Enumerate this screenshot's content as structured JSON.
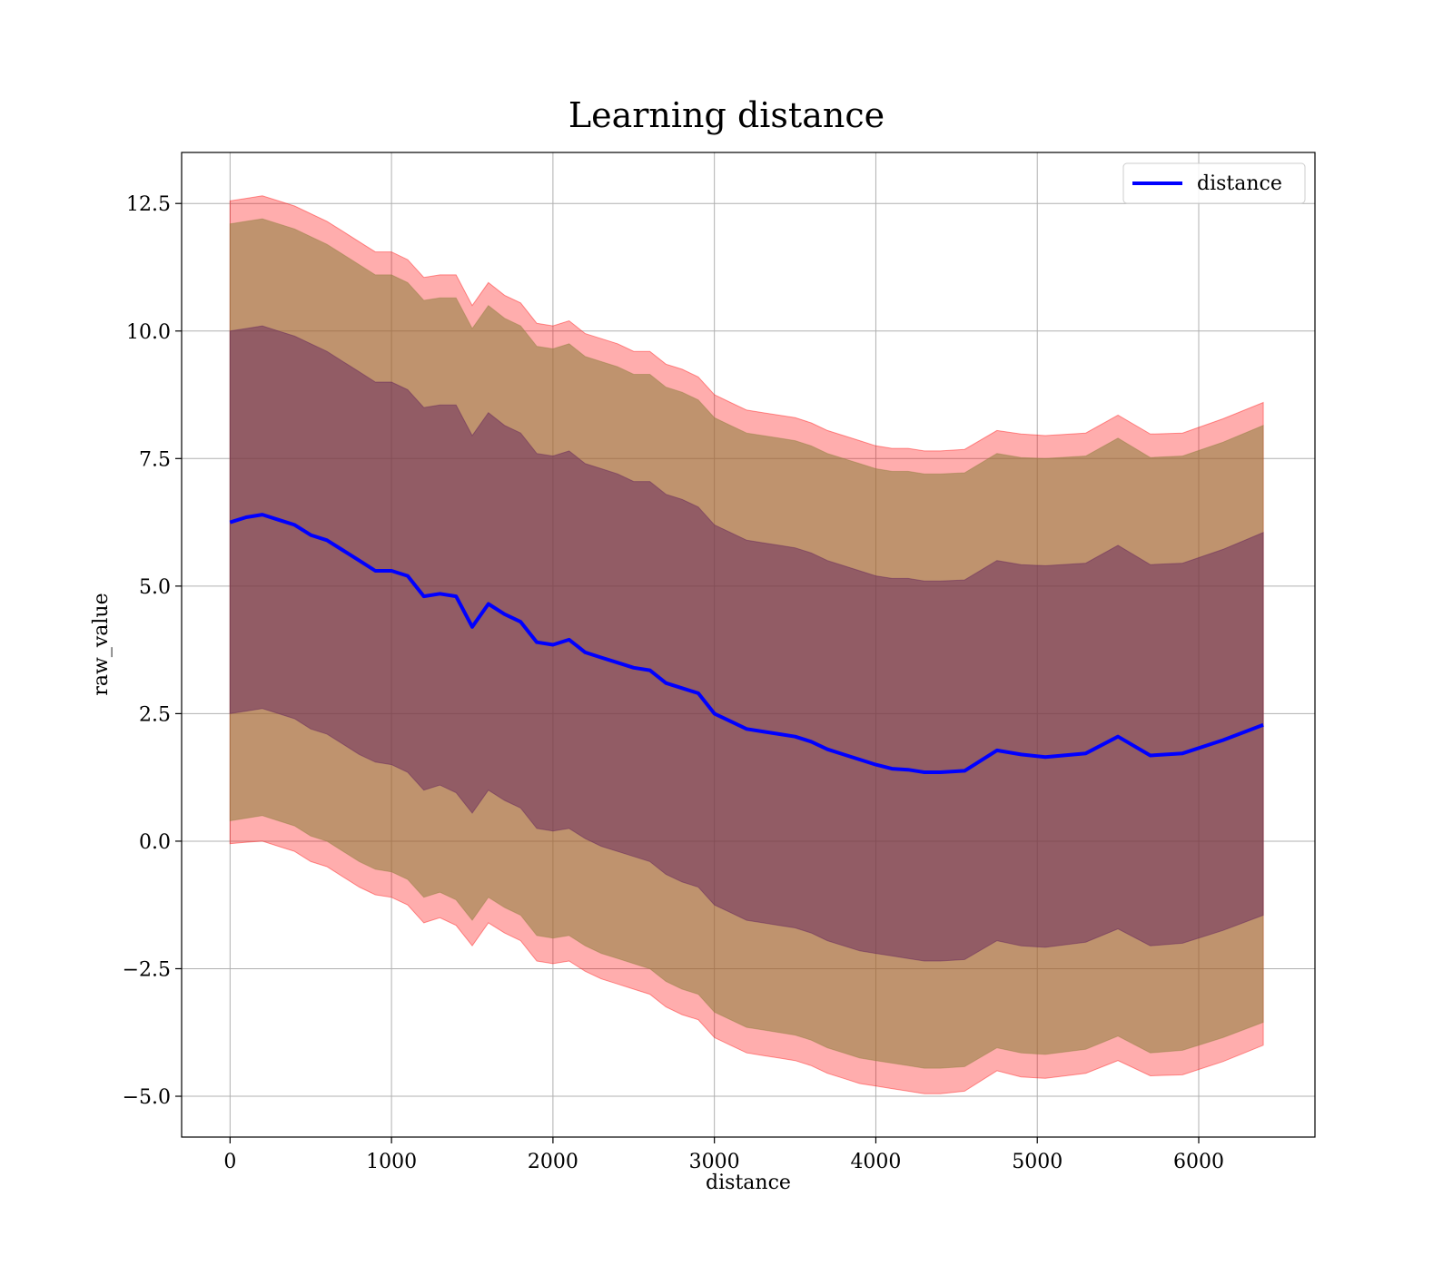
{
  "chart_data": {
    "type": "area",
    "title": "Learning distance",
    "xlabel": "distance",
    "ylabel": "raw_value",
    "xlim": [
      -300,
      6720
    ],
    "ylim": [
      -5.8,
      13.5
    ],
    "xticks": [
      0,
      1000,
      2000,
      3000,
      4000,
      5000,
      6000
    ],
    "yticks": [
      -5.0,
      -2.5,
      0.0,
      2.5,
      5.0,
      7.5,
      10.0,
      12.5
    ],
    "xtick_labels": [
      "0",
      "1000",
      "2000",
      "3000",
      "4000",
      "5000",
      "6000"
    ],
    "ytick_labels": [
      "−5.0",
      "−2.5",
      "0.0",
      "2.5",
      "5.0",
      "7.5",
      "10.0",
      "12.5"
    ],
    "grid": true,
    "legend": {
      "position": "top-right",
      "entries": [
        "distance"
      ]
    },
    "colors": {
      "line": "#0000ff",
      "outer_band": "#ff0000",
      "middle_band": "#8b7d3a",
      "inner_band": "#5a1a5a",
      "grid": "#b0b0b0"
    },
    "series": [
      {
        "name": "distance",
        "x": [
          0,
          100,
          200,
          300,
          400,
          500,
          600,
          700,
          800,
          900,
          1000,
          1100,
          1200,
          1300,
          1400,
          1500,
          1600,
          1700,
          1800,
          1900,
          2000,
          2100,
          2200,
          2300,
          2400,
          2500,
          2600,
          2700,
          2800,
          2900,
          3000,
          3100,
          3200,
          3300,
          3400,
          3500,
          3600,
          3700,
          3800,
          3900,
          4000,
          4100,
          4200,
          4300,
          4400,
          4550,
          4750,
          4900,
          5050,
          5300,
          5500,
          5700,
          5900,
          6150,
          6400
        ],
        "values": [
          6.25,
          6.35,
          6.4,
          6.3,
          6.2,
          6.0,
          5.9,
          5.7,
          5.5,
          5.3,
          5.3,
          5.2,
          4.8,
          4.85,
          4.8,
          4.2,
          4.65,
          4.45,
          4.3,
          3.9,
          3.85,
          3.95,
          3.7,
          3.6,
          3.5,
          3.4,
          3.35,
          3.1,
          3.0,
          2.9,
          2.5,
          2.35,
          2.2,
          2.15,
          2.1,
          2.05,
          1.95,
          1.8,
          1.7,
          1.6,
          1.5,
          1.42,
          1.4,
          1.35,
          1.35,
          1.38,
          1.78,
          1.7,
          1.65,
          1.72,
          2.05,
          1.68,
          1.72,
          1.98,
          2.28
        ]
      }
    ],
    "bands": [
      {
        "role": "outer",
        "lower": [
          -0.05,
          -0.02,
          0.0,
          -0.1,
          -0.2,
          -0.4,
          -0.5,
          -0.7,
          -0.9,
          -1.05,
          -1.1,
          -1.25,
          -1.6,
          -1.5,
          -1.65,
          -2.05,
          -1.6,
          -1.8,
          -1.95,
          -2.35,
          -2.4,
          -2.35,
          -2.55,
          -2.7,
          -2.8,
          -2.9,
          -3.0,
          -3.25,
          -3.4,
          -3.5,
          -3.85,
          -4.0,
          -4.15,
          -4.2,
          -4.25,
          -4.3,
          -4.4,
          -4.55,
          -4.65,
          -4.75,
          -4.8,
          -4.85,
          -4.9,
          -4.95,
          -4.95,
          -4.9,
          -4.5,
          -4.62,
          -4.65,
          -4.55,
          -4.3,
          -4.6,
          -4.58,
          -4.32,
          -4.0
        ],
        "upper": [
          12.55,
          12.6,
          12.65,
          12.55,
          12.45,
          12.3,
          12.15,
          11.95,
          11.75,
          11.55,
          11.55,
          11.4,
          11.05,
          11.1,
          11.1,
          10.5,
          10.95,
          10.7,
          10.55,
          10.15,
          10.1,
          10.2,
          9.95,
          9.85,
          9.75,
          9.6,
          9.6,
          9.35,
          9.25,
          9.1,
          8.75,
          8.6,
          8.45,
          8.4,
          8.35,
          8.3,
          8.2,
          8.05,
          7.95,
          7.85,
          7.75,
          7.7,
          7.7,
          7.65,
          7.65,
          7.68,
          8.05,
          7.98,
          7.95,
          8.0,
          8.35,
          7.98,
          8.0,
          8.28,
          8.6
        ]
      },
      {
        "role": "middle",
        "lower": [
          0.4,
          0.45,
          0.5,
          0.4,
          0.3,
          0.1,
          0.0,
          -0.2,
          -0.4,
          -0.55,
          -0.6,
          -0.75,
          -1.1,
          -1.0,
          -1.15,
          -1.55,
          -1.1,
          -1.3,
          -1.45,
          -1.85,
          -1.9,
          -1.85,
          -2.05,
          -2.2,
          -2.3,
          -2.4,
          -2.5,
          -2.75,
          -2.9,
          -3.0,
          -3.35,
          -3.5,
          -3.65,
          -3.7,
          -3.75,
          -3.8,
          -3.9,
          -4.05,
          -4.15,
          -4.25,
          -4.3,
          -4.35,
          -4.4,
          -4.45,
          -4.45,
          -4.42,
          -4.05,
          -4.15,
          -4.18,
          -4.08,
          -3.82,
          -4.15,
          -4.1,
          -3.85,
          -3.55
        ],
        "upper": [
          12.1,
          12.15,
          12.2,
          12.1,
          12.0,
          11.85,
          11.7,
          11.5,
          11.3,
          11.1,
          11.1,
          10.95,
          10.6,
          10.65,
          10.65,
          10.05,
          10.5,
          10.25,
          10.1,
          9.7,
          9.65,
          9.75,
          9.5,
          9.4,
          9.3,
          9.15,
          9.15,
          8.9,
          8.8,
          8.65,
          8.3,
          8.15,
          8.0,
          7.95,
          7.9,
          7.85,
          7.75,
          7.6,
          7.5,
          7.4,
          7.3,
          7.25,
          7.25,
          7.2,
          7.2,
          7.22,
          7.6,
          7.52,
          7.5,
          7.55,
          7.9,
          7.52,
          7.55,
          7.82,
          8.15
        ]
      },
      {
        "role": "inner",
        "lower": [
          2.5,
          2.55,
          2.6,
          2.5,
          2.4,
          2.2,
          2.1,
          1.9,
          1.7,
          1.55,
          1.5,
          1.35,
          1.0,
          1.1,
          0.95,
          0.55,
          1.0,
          0.8,
          0.65,
          0.25,
          0.2,
          0.25,
          0.05,
          -0.1,
          -0.2,
          -0.3,
          -0.4,
          -0.65,
          -0.8,
          -0.9,
          -1.25,
          -1.4,
          -1.55,
          -1.6,
          -1.65,
          -1.7,
          -1.8,
          -1.95,
          -2.05,
          -2.15,
          -2.2,
          -2.25,
          -2.3,
          -2.35,
          -2.35,
          -2.32,
          -1.95,
          -2.05,
          -2.08,
          -1.98,
          -1.72,
          -2.05,
          -2.0,
          -1.75,
          -1.45
        ],
        "upper": [
          10.0,
          10.05,
          10.1,
          10.0,
          9.9,
          9.75,
          9.6,
          9.4,
          9.2,
          9.0,
          9.0,
          8.85,
          8.5,
          8.55,
          8.55,
          7.95,
          8.4,
          8.15,
          8.0,
          7.6,
          7.55,
          7.65,
          7.4,
          7.3,
          7.2,
          7.05,
          7.05,
          6.8,
          6.7,
          6.55,
          6.2,
          6.05,
          5.9,
          5.85,
          5.8,
          5.75,
          5.65,
          5.5,
          5.4,
          5.3,
          5.2,
          5.15,
          5.15,
          5.1,
          5.1,
          5.12,
          5.5,
          5.42,
          5.4,
          5.45,
          5.8,
          5.42,
          5.45,
          5.72,
          6.05
        ]
      }
    ]
  }
}
